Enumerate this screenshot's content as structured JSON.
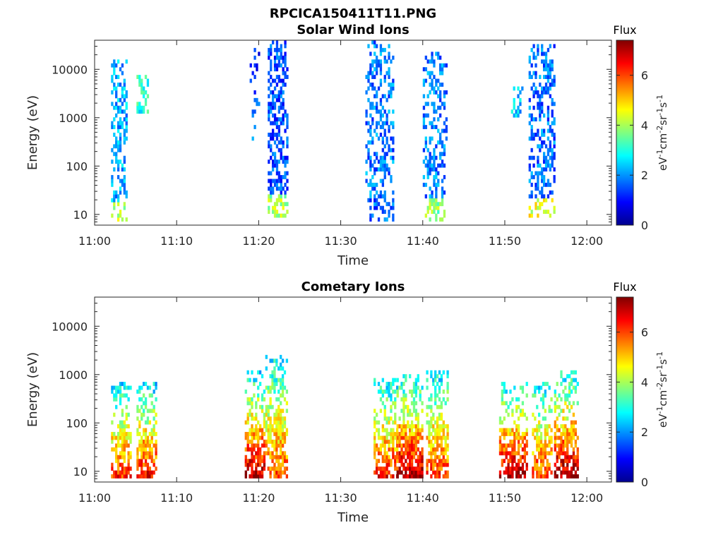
{
  "figure_title": "RPCICA150411T11.PNG",
  "chart_data": [
    {
      "type": "heatmap",
      "title": "Solar Wind Ions",
      "xlabel": "Time",
      "ylabel": "Energy (eV)",
      "y_scale": "log",
      "ylim": [
        6,
        40000
      ],
      "xlim": [
        "11:00",
        "12:03"
      ],
      "x_ticks": [
        "11:00",
        "11:10",
        "11:20",
        "11:30",
        "11:40",
        "11:50",
        "12:00"
      ],
      "y_ticks": [
        {
          "value": 10,
          "label": "10"
        },
        {
          "value": 100,
          "label": "100"
        },
        {
          "value": 1000,
          "label": "1000"
        },
        {
          "value": 10000,
          "label": "10000"
        }
      ],
      "colorbar": {
        "title": "Flux",
        "unit_html": "eV<tspan dy=\"-6\" font-size=\"11\">-1</tspan><tspan dy=\"6\">cm</tspan><tspan dy=\"-6\" font-size=\"11\">-2</tspan><tspan dy=\"6\">sr</tspan><tspan dy=\"-6\" font-size=\"11\">-1</tspan><tspan dy=\"6\">s</tspan><tspan dy=\"-6\" font-size=\"11\">-1</tspan>",
        "range": [
          0,
          7.4
        ],
        "ticks": [
          "0",
          "2",
          "4",
          "6"
        ],
        "colormap": "jet"
      },
      "bursts": [
        {
          "t": 3.0,
          "width": 2.0,
          "emin": 7,
          "emax": 15000,
          "flux": 2.2,
          "density": 0.55,
          "low_flux": 4.0
        },
        {
          "t": 5.8,
          "width": 1.4,
          "emin": 1200,
          "emax": 7000,
          "flux": 3.0,
          "density": 0.5,
          "low_flux": 3.0
        },
        {
          "t": 19.5,
          "width": 1.2,
          "emin": 300,
          "emax": 25000,
          "flux": 1.3,
          "density": 0.3,
          "low_flux": 2.0
        },
        {
          "t": 22.3,
          "width": 2.4,
          "emin": 8,
          "emax": 35000,
          "flux": 1.5,
          "density": 0.6,
          "low_flux": 4.0
        },
        {
          "t": 34.8,
          "width": 3.6,
          "emin": 7,
          "emax": 35000,
          "flux": 1.8,
          "density": 0.45,
          "low_flux": 1.6
        },
        {
          "t": 41.5,
          "width": 3.0,
          "emin": 7,
          "emax": 20000,
          "flux": 1.8,
          "density": 0.5,
          "low_flux": 3.8
        },
        {
          "t": 51.5,
          "width": 1.5,
          "emin": 1000,
          "emax": 4000,
          "flux": 2.4,
          "density": 0.3,
          "low_flux": 2.4
        },
        {
          "t": 54.5,
          "width": 3.2,
          "emin": 8,
          "emax": 30000,
          "flux": 1.7,
          "density": 0.5,
          "low_flux": 4.4
        }
      ]
    },
    {
      "type": "heatmap",
      "title": "Cometary Ions",
      "xlabel": "Time",
      "ylabel": "Energy (eV)",
      "y_scale": "log",
      "ylim": [
        6,
        40000
      ],
      "xlim": [
        "11:00",
        "12:03"
      ],
      "x_ticks": [
        "11:00",
        "11:10",
        "11:20",
        "11:30",
        "11:40",
        "11:50",
        "12:00"
      ],
      "y_ticks": [
        {
          "value": 10,
          "label": "10"
        },
        {
          "value": 100,
          "label": "100"
        },
        {
          "value": 1000,
          "label": "1000"
        },
        {
          "value": 10000,
          "label": "10000"
        }
      ],
      "colorbar": {
        "title": "Flux",
        "unit_html": "eV<tspan dy=\"-6\" font-size=\"11\">-1</tspan><tspan dy=\"6\">cm</tspan><tspan dy=\"-6\" font-size=\"11\">-2</tspan><tspan dy=\"6\">sr</tspan><tspan dy=\"-6\" font-size=\"11\">-1</tspan><tspan dy=\"6\">s</tspan><tspan dy=\"-6\" font-size=\"11\">-1</tspan>",
        "range": [
          0,
          7.4
        ],
        "ticks": [
          "0",
          "2",
          "4",
          "6"
        ],
        "colormap": "jet"
      },
      "bursts": [
        {
          "t": 3.2,
          "width": 2.4,
          "emin": 7,
          "emax": 600,
          "flux": 5.0,
          "density": 0.75,
          "core_flux": 6.2
        },
        {
          "t": 6.4,
          "width": 2.6,
          "emin": 7,
          "emax": 600,
          "flux": 5.0,
          "density": 0.75,
          "core_flux": 6.6
        },
        {
          "t": 19.6,
          "width": 2.6,
          "emin": 7,
          "emax": 1200,
          "flux": 5.2,
          "density": 0.7,
          "core_flux": 7.0
        },
        {
          "t": 22.2,
          "width": 2.8,
          "emin": 7,
          "emax": 2800,
          "flux": 4.6,
          "density": 0.7,
          "core_flux": 6.0
        },
        {
          "t": 35.5,
          "width": 3.0,
          "emin": 7,
          "emax": 800,
          "flux": 4.8,
          "density": 0.7,
          "core_flux": 6.4
        },
        {
          "t": 38.4,
          "width": 3.2,
          "emin": 7,
          "emax": 1000,
          "flux": 5.4,
          "density": 0.75,
          "core_flux": 7.2
        },
        {
          "t": 41.8,
          "width": 2.8,
          "emin": 7,
          "emax": 1200,
          "flux": 4.8,
          "density": 0.7,
          "core_flux": 6.2
        },
        {
          "t": 51.0,
          "width": 3.4,
          "emin": 7,
          "emax": 700,
          "flux": 5.4,
          "density": 0.75,
          "core_flux": 7.2
        },
        {
          "t": 54.6,
          "width": 2.6,
          "emin": 7,
          "emax": 700,
          "flux": 4.8,
          "density": 0.7,
          "core_flux": 6.2
        },
        {
          "t": 57.5,
          "width": 3.0,
          "emin": 7,
          "emax": 1200,
          "flux": 5.2,
          "density": 0.75,
          "core_flux": 7.2
        }
      ]
    }
  ]
}
